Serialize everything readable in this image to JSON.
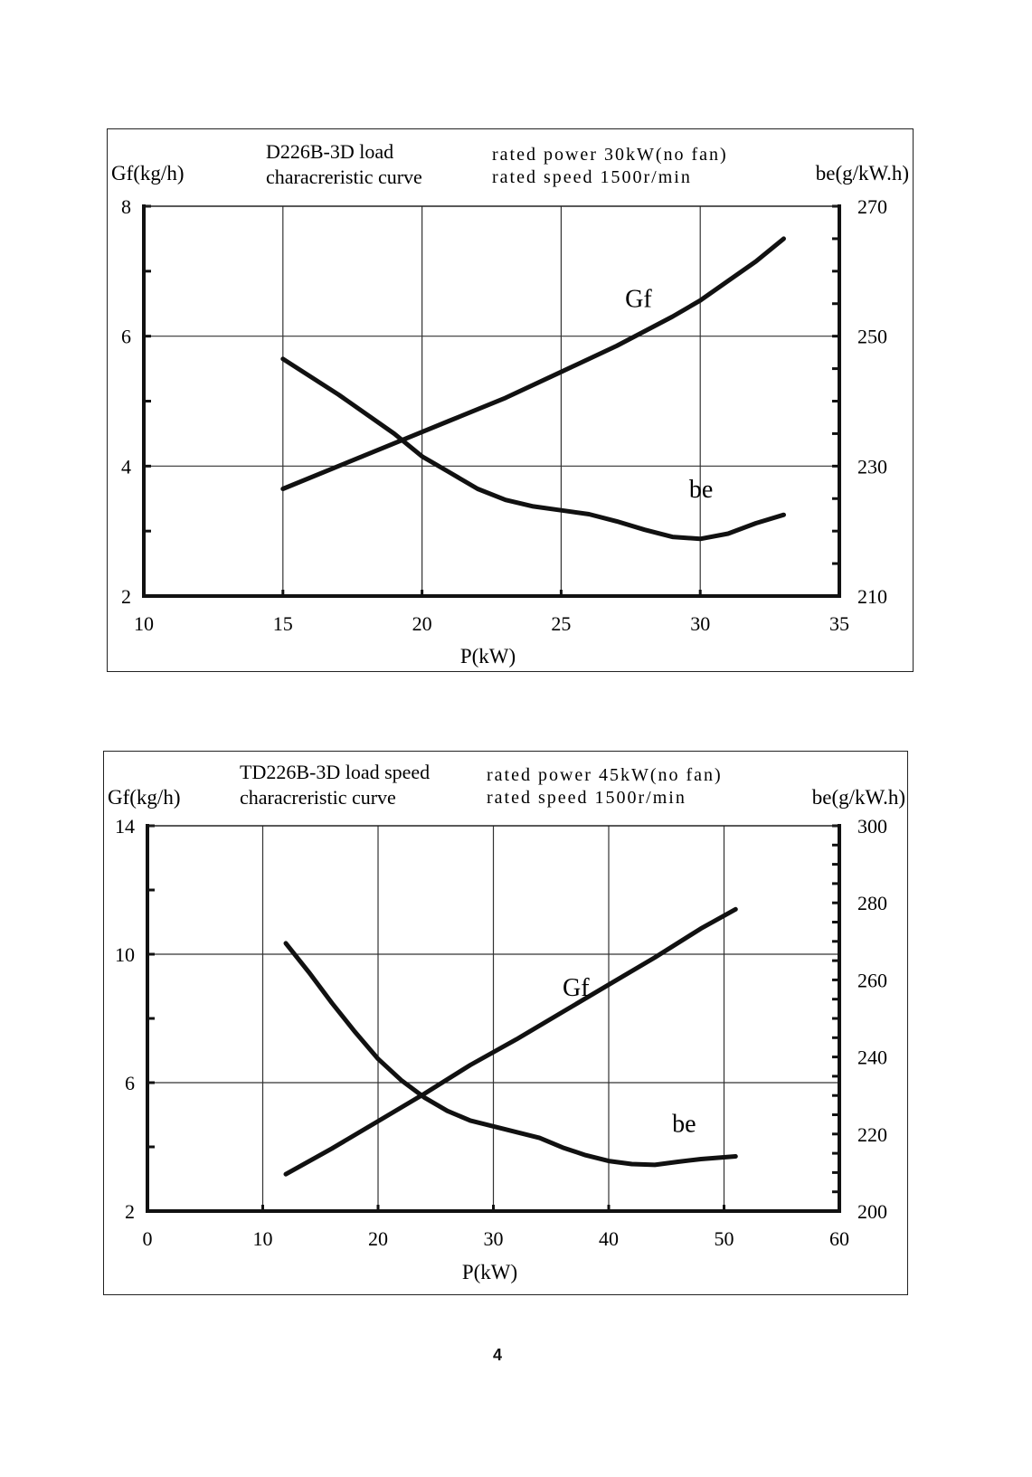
{
  "page": {
    "number": "4"
  },
  "chart_data": [
    {
      "type": "line",
      "title_lines": [
        "D226B-3D load",
        "characreristic curve"
      ],
      "notes": [
        "rated power 30kW(no fan)",
        "rated speed 1500r/min"
      ],
      "xlabel": "P(kW)",
      "ylabel_left": "Gf(kg/h)",
      "ylabel_right": "be(g/kW.h)",
      "xlim": [
        10,
        35
      ],
      "xticks": [
        "10",
        "15",
        "20",
        "25",
        "30",
        "35"
      ],
      "ylim_left": [
        2,
        8
      ],
      "yticks_left": [
        "2",
        "4",
        "6",
        "8"
      ],
      "ylim_right": [
        210,
        270
      ],
      "yticks_right": [
        "210",
        "230",
        "250",
        "270"
      ],
      "grid": true,
      "series": [
        {
          "name": "Gf",
          "axis": "left",
          "x": [
            15,
            17,
            19,
            21,
            23,
            25,
            27,
            29,
            30,
            31,
            32,
            33
          ],
          "values": [
            3.65,
            4.0,
            4.35,
            4.7,
            5.05,
            5.45,
            5.85,
            6.3,
            6.55,
            6.85,
            7.15,
            7.5
          ]
        },
        {
          "name": "be",
          "axis": "right",
          "x": [
            15,
            17,
            19,
            20,
            21,
            22,
            23,
            24,
            25,
            26,
            27,
            28,
            29,
            30,
            31,
            32,
            33
          ],
          "values": [
            246.5,
            241,
            235,
            231.5,
            229,
            226.5,
            224.8,
            223.8,
            223.2,
            222.6,
            221.5,
            220.2,
            219.1,
            218.8,
            219.6,
            221.2,
            222.5
          ]
        }
      ]
    },
    {
      "type": "line",
      "title_lines": [
        "TD226B-3D load speed",
        "characreristic curve"
      ],
      "notes": [
        "rated power 45kW(no fan)",
        "rated speed 1500r/min"
      ],
      "xlabel": "P(kW)",
      "ylabel_left": "Gf(kg/h)",
      "ylabel_right": "be(g/kW.h)",
      "xlim": [
        0,
        60
      ],
      "xticks": [
        "0",
        "10",
        "20",
        "30",
        "40",
        "50",
        "60"
      ],
      "ylim_left": [
        2,
        14
      ],
      "yticks_left": [
        "2",
        "6",
        "10",
        "14"
      ],
      "ylim_right": [
        200,
        300
      ],
      "yticks_right": [
        "200",
        "220",
        "240",
        "260",
        "280",
        "300"
      ],
      "grid": true,
      "series": [
        {
          "name": "Gf",
          "axis": "left",
          "x": [
            12,
            16,
            20,
            24,
            28,
            32,
            36,
            40,
            44,
            48,
            51
          ],
          "values": [
            3.15,
            3.95,
            4.8,
            5.65,
            6.55,
            7.35,
            8.2,
            9.05,
            9.9,
            10.8,
            11.4
          ]
        },
        {
          "name": "be",
          "axis": "right",
          "x": [
            12,
            14,
            16,
            18,
            20,
            22,
            24,
            26,
            28,
            30,
            32,
            34,
            36,
            38,
            40,
            42,
            44,
            46,
            48,
            51
          ],
          "values": [
            269.5,
            262,
            254,
            246.5,
            239.5,
            234,
            229.5,
            226,
            223.5,
            222,
            220.5,
            219,
            216.5,
            214.5,
            213,
            212.2,
            212,
            212.8,
            213.5,
            214.2
          ]
        }
      ]
    }
  ]
}
